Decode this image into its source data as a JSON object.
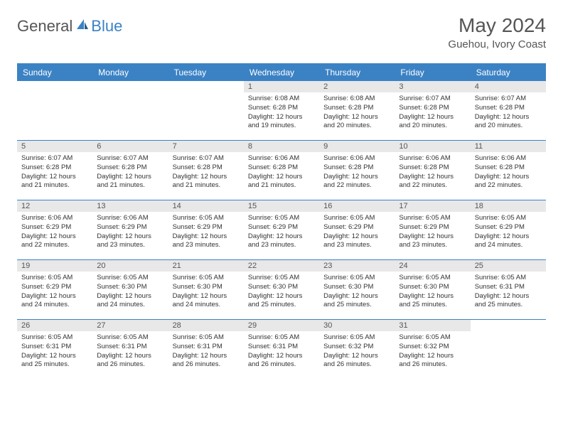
{
  "logo": {
    "general": "General",
    "blue": "Blue"
  },
  "title": "May 2024",
  "location": "Guehou, Ivory Coast",
  "header_bg": "#3b82c4",
  "daynum_bg": "#e8e8e8",
  "border_color": "#3b82c4",
  "days_of_week": [
    "Sunday",
    "Monday",
    "Tuesday",
    "Wednesday",
    "Thursday",
    "Friday",
    "Saturday"
  ],
  "weeks": [
    [
      null,
      null,
      null,
      {
        "n": "1",
        "sr": "6:08 AM",
        "ss": "6:28 PM",
        "dl": "12 hours and 19 minutes."
      },
      {
        "n": "2",
        "sr": "6:08 AM",
        "ss": "6:28 PM",
        "dl": "12 hours and 20 minutes."
      },
      {
        "n": "3",
        "sr": "6:07 AM",
        "ss": "6:28 PM",
        "dl": "12 hours and 20 minutes."
      },
      {
        "n": "4",
        "sr": "6:07 AM",
        "ss": "6:28 PM",
        "dl": "12 hours and 20 minutes."
      }
    ],
    [
      {
        "n": "5",
        "sr": "6:07 AM",
        "ss": "6:28 PM",
        "dl": "12 hours and 21 minutes."
      },
      {
        "n": "6",
        "sr": "6:07 AM",
        "ss": "6:28 PM",
        "dl": "12 hours and 21 minutes."
      },
      {
        "n": "7",
        "sr": "6:07 AM",
        "ss": "6:28 PM",
        "dl": "12 hours and 21 minutes."
      },
      {
        "n": "8",
        "sr": "6:06 AM",
        "ss": "6:28 PM",
        "dl": "12 hours and 21 minutes."
      },
      {
        "n": "9",
        "sr": "6:06 AM",
        "ss": "6:28 PM",
        "dl": "12 hours and 22 minutes."
      },
      {
        "n": "10",
        "sr": "6:06 AM",
        "ss": "6:28 PM",
        "dl": "12 hours and 22 minutes."
      },
      {
        "n": "11",
        "sr": "6:06 AM",
        "ss": "6:28 PM",
        "dl": "12 hours and 22 minutes."
      }
    ],
    [
      {
        "n": "12",
        "sr": "6:06 AM",
        "ss": "6:29 PM",
        "dl": "12 hours and 22 minutes."
      },
      {
        "n": "13",
        "sr": "6:06 AM",
        "ss": "6:29 PM",
        "dl": "12 hours and 23 minutes."
      },
      {
        "n": "14",
        "sr": "6:05 AM",
        "ss": "6:29 PM",
        "dl": "12 hours and 23 minutes."
      },
      {
        "n": "15",
        "sr": "6:05 AM",
        "ss": "6:29 PM",
        "dl": "12 hours and 23 minutes."
      },
      {
        "n": "16",
        "sr": "6:05 AM",
        "ss": "6:29 PM",
        "dl": "12 hours and 23 minutes."
      },
      {
        "n": "17",
        "sr": "6:05 AM",
        "ss": "6:29 PM",
        "dl": "12 hours and 23 minutes."
      },
      {
        "n": "18",
        "sr": "6:05 AM",
        "ss": "6:29 PM",
        "dl": "12 hours and 24 minutes."
      }
    ],
    [
      {
        "n": "19",
        "sr": "6:05 AM",
        "ss": "6:29 PM",
        "dl": "12 hours and 24 minutes."
      },
      {
        "n": "20",
        "sr": "6:05 AM",
        "ss": "6:30 PM",
        "dl": "12 hours and 24 minutes."
      },
      {
        "n": "21",
        "sr": "6:05 AM",
        "ss": "6:30 PM",
        "dl": "12 hours and 24 minutes."
      },
      {
        "n": "22",
        "sr": "6:05 AM",
        "ss": "6:30 PM",
        "dl": "12 hours and 25 minutes."
      },
      {
        "n": "23",
        "sr": "6:05 AM",
        "ss": "6:30 PM",
        "dl": "12 hours and 25 minutes."
      },
      {
        "n": "24",
        "sr": "6:05 AM",
        "ss": "6:30 PM",
        "dl": "12 hours and 25 minutes."
      },
      {
        "n": "25",
        "sr": "6:05 AM",
        "ss": "6:31 PM",
        "dl": "12 hours and 25 minutes."
      }
    ],
    [
      {
        "n": "26",
        "sr": "6:05 AM",
        "ss": "6:31 PM",
        "dl": "12 hours and 25 minutes."
      },
      {
        "n": "27",
        "sr": "6:05 AM",
        "ss": "6:31 PM",
        "dl": "12 hours and 26 minutes."
      },
      {
        "n": "28",
        "sr": "6:05 AM",
        "ss": "6:31 PM",
        "dl": "12 hours and 26 minutes."
      },
      {
        "n": "29",
        "sr": "6:05 AM",
        "ss": "6:31 PM",
        "dl": "12 hours and 26 minutes."
      },
      {
        "n": "30",
        "sr": "6:05 AM",
        "ss": "6:32 PM",
        "dl": "12 hours and 26 minutes."
      },
      {
        "n": "31",
        "sr": "6:05 AM",
        "ss": "6:32 PM",
        "dl": "12 hours and 26 minutes."
      },
      null
    ]
  ],
  "labels": {
    "sunrise": "Sunrise:",
    "sunset": "Sunset:",
    "daylight": "Daylight:"
  }
}
